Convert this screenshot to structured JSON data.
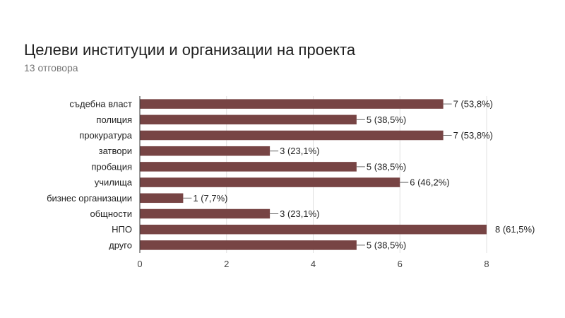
{
  "chart_data": {
    "type": "bar",
    "orientation": "horizontal",
    "title": "Целеви институции и организации на проекта",
    "subtitle": "13 отговора",
    "categories": [
      "съдебна власт",
      "полиция",
      "прокуратура",
      "затвори",
      "пробация",
      "училища",
      "бизнес организации",
      "общности",
      "НПО",
      "друго"
    ],
    "values": [
      7,
      5,
      7,
      3,
      5,
      6,
      1,
      3,
      8,
      5
    ],
    "data_labels": [
      "7 (53,8%)",
      "5 (38,5%)",
      "7 (53,8%)",
      "3 (23,1%)",
      "5 (38,5%)",
      "6 (46,2%)",
      "1 (7,7%)",
      "3 (23,1%)",
      "8 (61,5%)",
      "5 (38,5%)"
    ],
    "xlim": [
      0,
      8
    ],
    "xticks": [
      "0",
      "2",
      "4",
      "6",
      "8"
    ],
    "bar_color": "#774444",
    "grid": true
  }
}
